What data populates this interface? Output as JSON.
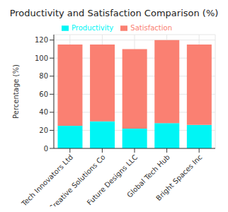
{
  "chart_data": {
    "type": "bar",
    "title": "Productivity and Satisfaction Comparison (%)",
    "y_label": "Percentage (%)",
    "categories": [
      "Tech Innovators Ltd",
      "Creative Solutions Co",
      "Future Designs LLC",
      "Global Tech Hub",
      "Bright Spaces Inc"
    ],
    "series": [
      {
        "name": "Productivity",
        "color": "#00f5f5",
        "values": [
          25,
          30,
          22,
          28,
          26
        ]
      },
      {
        "name": "Satisfaction",
        "color": "#fa8072",
        "values": [
          90,
          85,
          88,
          92,
          89
        ]
      }
    ],
    "stacked": true,
    "ylim": [
      0,
      126
    ],
    "yticks": [
      0,
      20,
      40,
      60,
      80,
      100,
      120
    ],
    "grid": true,
    "legend": "top"
  }
}
